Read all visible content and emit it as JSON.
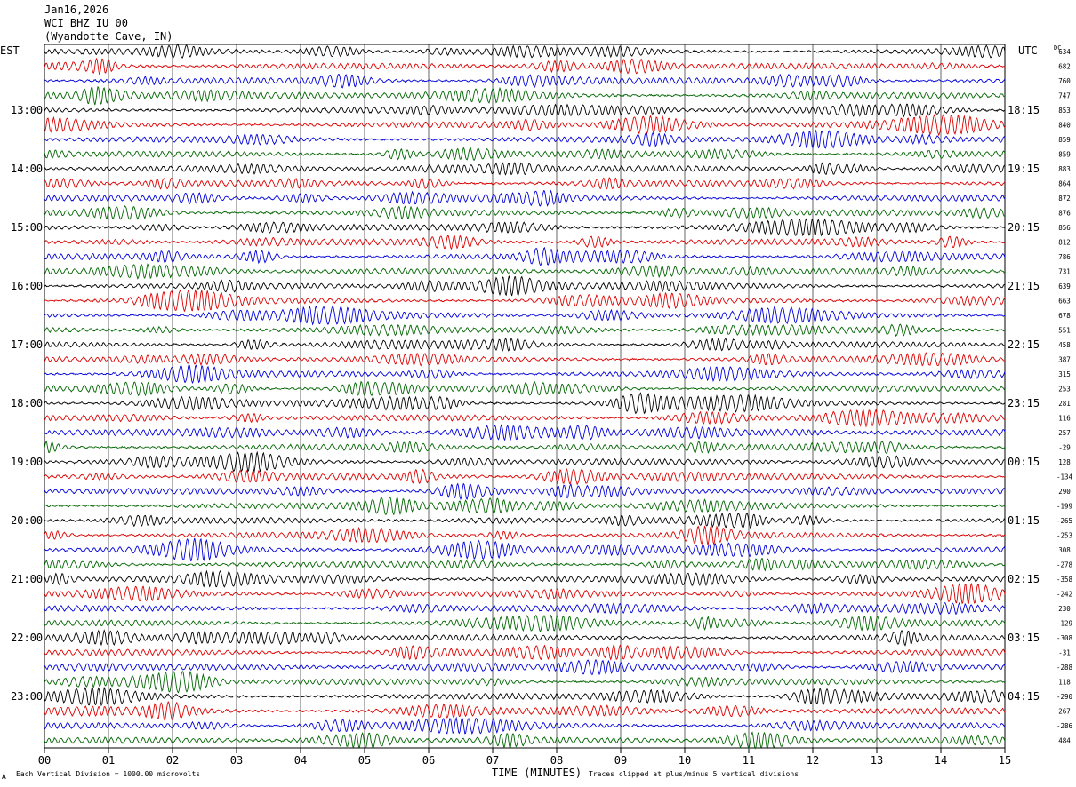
{
  "header": {
    "date": "Jan16,2026",
    "station": "WCI BHZ IU 00",
    "location": "(Wyandotte Cave, IN)"
  },
  "labels": {
    "left_timezone": "EST",
    "right_timezone": "UTC",
    "dc": "DC"
  },
  "footer": {
    "scale_note": "Each Vertical Division = 1000.00 microvolts",
    "axis_title": "TIME (MINUTES)",
    "clip_note": "Traces clipped at plus/minus 5 vertical divisions",
    "corner_mark": "A"
  },
  "chart_data": {
    "type": "line",
    "title": "Jan16,2026",
    "xlabel": "TIME (MINUTES)",
    "xlim": [
      0,
      15
    ],
    "x_tick_labels": [
      "00",
      "01",
      "02",
      "03",
      "04",
      "05",
      "06",
      "07",
      "08",
      "09",
      "10",
      "11",
      "12",
      "13",
      "14",
      "15"
    ],
    "trace_colors": [
      "#000000",
      "#dd0000",
      "#0000dd",
      "#006600"
    ],
    "left_hour_labels": [
      "13:00",
      "14:00",
      "15:00",
      "16:00",
      "17:00",
      "18:00",
      "19:00",
      "20:00",
      "21:00",
      "22:00",
      "23:00"
    ],
    "right_hour_labels": [
      "18:15",
      "19:15",
      "20:15",
      "21:15",
      "22:15",
      "23:15",
      "00:15",
      "01:15",
      "02:15",
      "03:15",
      "04:15"
    ],
    "first_labeled_row": 4,
    "dc_offsets": [
      "634",
      "682",
      "760",
      "747",
      "853",
      "840",
      "859",
      "859",
      "883",
      "864",
      "872",
      "876",
      "856",
      "812",
      "786",
      "731",
      "639",
      "663",
      "678",
      "551",
      "458",
      "387",
      "315",
      "253",
      "281",
      "116",
      "257",
      "-29",
      "128",
      "-134",
      "290",
      "-199",
      "-265",
      "-253",
      "308",
      "-278",
      "-358",
      "-242",
      "230",
      "-129",
      "-308",
      "-31",
      "-288",
      "118",
      "-290",
      "267",
      "-286",
      "484"
    ],
    "trace_count": 48,
    "minutes_per_trace": 15,
    "microvolts_per_division": 1000.0,
    "clip_divisions": 5
  }
}
